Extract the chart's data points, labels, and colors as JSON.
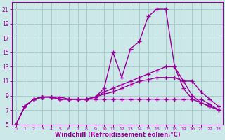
{
  "title": "",
  "xlabel": "Windchill (Refroidissement éolien,°C)",
  "ylabel": "",
  "bg_color": "#cde8e8",
  "line_color": "#990099",
  "grid_color": "#aacccc",
  "xlim": [
    -0.5,
    23.5
  ],
  "ylim": [
    5,
    22
  ],
  "xticks": [
    0,
    1,
    2,
    3,
    4,
    5,
    6,
    7,
    8,
    9,
    10,
    11,
    12,
    13,
    14,
    15,
    16,
    17,
    18,
    19,
    20,
    21,
    22,
    23
  ],
  "yticks": [
    5,
    7,
    9,
    11,
    13,
    15,
    17,
    19,
    21
  ],
  "series": [
    [
      5.0,
      7.5,
      8.5,
      8.8,
      8.8,
      8.8,
      8.5,
      8.5,
      8.5,
      8.8,
      10.0,
      15.0,
      11.5,
      15.5,
      16.5,
      20.0,
      21.0,
      21.0,
      13.0,
      10.0,
      8.5,
      8.0,
      7.5,
      7.0
    ],
    [
      5.0,
      7.5,
      8.5,
      8.8,
      8.8,
      8.5,
      8.5,
      8.5,
      8.5,
      8.8,
      9.5,
      10.0,
      10.5,
      11.0,
      11.5,
      12.0,
      12.5,
      13.0,
      13.0,
      11.0,
      9.0,
      8.0,
      7.5,
      7.0
    ],
    [
      5.0,
      7.5,
      8.5,
      8.8,
      8.8,
      8.5,
      8.5,
      8.5,
      8.5,
      8.8,
      9.2,
      9.5,
      10.0,
      10.5,
      11.0,
      11.2,
      11.5,
      11.5,
      11.5,
      11.0,
      11.0,
      9.5,
      8.5,
      7.5
    ],
    [
      5.0,
      7.5,
      8.5,
      8.8,
      8.8,
      8.5,
      8.5,
      8.5,
      8.5,
      8.5,
      8.5,
      8.5,
      8.5,
      8.5,
      8.5,
      8.5,
      8.5,
      8.5,
      8.5,
      8.5,
      8.5,
      8.5,
      7.8,
      7.0
    ]
  ],
  "marker": "+",
  "markersize": 4,
  "linewidth": 1.0,
  "xlabel_fontsize": 6,
  "tick_fontsize": 5.5
}
